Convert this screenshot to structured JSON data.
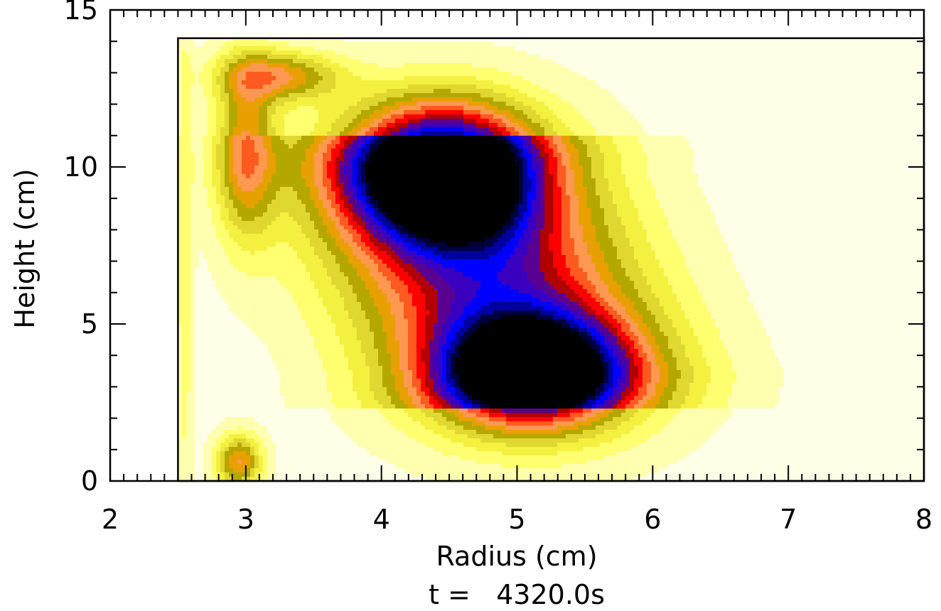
{
  "chart_data": {
    "type": "heatmap",
    "subtype": "filled-contour",
    "title": "",
    "xlabel": "Radius (cm)",
    "ylabel": "Height (cm)",
    "footer": "t =   4320.0s",
    "xlim": [
      2,
      8
    ],
    "ylim": [
      0,
      15
    ],
    "x_ticks": [
      2,
      3,
      4,
      5,
      6,
      7,
      8
    ],
    "y_ticks": [
      0,
      5,
      10,
      15
    ],
    "x_tick_labels": [
      "2",
      "3",
      "4",
      "5",
      "6",
      "7",
      "8"
    ],
    "y_tick_labels": [
      "0",
      "5",
      "10",
      "15"
    ],
    "domain": {
      "r_min": 2.5,
      "r_max": 8.0,
      "z_min": 0.0,
      "z_max": 14.1
    },
    "colormap": [
      "#ffffe8",
      "#ffffb0",
      "#ffff70",
      "#f4f040",
      "#e0d830",
      "#b4a800",
      "#e8a000",
      "#ff9850",
      "#ff5a20",
      "#ff0000",
      "#b00000",
      "#5a0090",
      "#3a00c0",
      "#0000ff",
      "#0000a0",
      "#000040",
      "#000000"
    ],
    "features": [
      {
        "name": "central-low",
        "r": 4.45,
        "z": 9.8,
        "level": 16
      },
      {
        "name": "lower-low",
        "r": 5.1,
        "z": 3.5,
        "level": 15
      },
      {
        "name": "upper-left-ridge",
        "r": 3.0,
        "z": 10.5,
        "level": 7
      },
      {
        "name": "bottom-left-blob",
        "r": 2.95,
        "z": 0.6,
        "level": 7
      }
    ]
  }
}
